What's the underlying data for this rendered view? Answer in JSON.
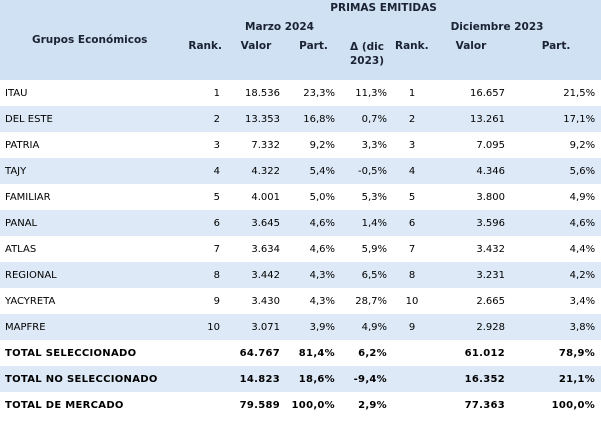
{
  "header": {
    "title": "PRIMAS EMITIDAS",
    "groups_label": "Grupos Económicos",
    "period1": "Marzo 2024",
    "period2": "Diciembre 2023",
    "cols1": {
      "rank": "Rank.",
      "valor": "Valor",
      "part": "Part.",
      "delta_line1": "Δ (dic",
      "delta_line2": "2023)"
    },
    "cols2": {
      "rank": "Rank.",
      "valor": "Valor",
      "part": "Part."
    }
  },
  "rows": [
    {
      "name": "ITAU",
      "rank1": "1",
      "valor1": "18.536",
      "part1": "23,3%",
      "delta": "11,3%",
      "rank2": "1",
      "valor2": "16.657",
      "part2": "21,5%"
    },
    {
      "name": "DEL ESTE",
      "rank1": "2",
      "valor1": "13.353",
      "part1": "16,8%",
      "delta": "0,7%",
      "rank2": "2",
      "valor2": "13.261",
      "part2": "17,1%"
    },
    {
      "name": "PATRIA",
      "rank1": "3",
      "valor1": "7.332",
      "part1": "9,2%",
      "delta": "3,3%",
      "rank2": "3",
      "valor2": "7.095",
      "part2": "9,2%"
    },
    {
      "name": "TAJY",
      "rank1": "4",
      "valor1": "4.322",
      "part1": "5,4%",
      "delta": "-0,5%",
      "rank2": "4",
      "valor2": "4.346",
      "part2": "5,6%"
    },
    {
      "name": "FAMILIAR",
      "rank1": "5",
      "valor1": "4.001",
      "part1": "5,0%",
      "delta": "5,3%",
      "rank2": "5",
      "valor2": "3.800",
      "part2": "4,9%"
    },
    {
      "name": "PANAL",
      "rank1": "6",
      "valor1": "3.645",
      "part1": "4,6%",
      "delta": "1,4%",
      "rank2": "6",
      "valor2": "3.596",
      "part2": "4,6%"
    },
    {
      "name": "ATLAS",
      "rank1": "7",
      "valor1": "3.634",
      "part1": "4,6%",
      "delta": "5,9%",
      "rank2": "7",
      "valor2": "3.432",
      "part2": "4,4%"
    },
    {
      "name": "REGIONAL",
      "rank1": "8",
      "valor1": "3.442",
      "part1": "4,3%",
      "delta": "6,5%",
      "rank2": "8",
      "valor2": "3.231",
      "part2": "4,2%"
    },
    {
      "name": "YACYRETA",
      "rank1": "9",
      "valor1": "3.430",
      "part1": "4,3%",
      "delta": "28,7%",
      "rank2": "10",
      "valor2": "2.665",
      "part2": "3,4%"
    },
    {
      "name": "MAPFRE",
      "rank1": "10",
      "valor1": "3.071",
      "part1": "3,9%",
      "delta": "4,9%",
      "rank2": "9",
      "valor2": "2.928",
      "part2": "3,8%"
    }
  ],
  "totals": [
    {
      "name": "TOTAL SELECCIONADO",
      "valor1": "64.767",
      "part1": "81,4%",
      "delta": "6,2%",
      "valor2": "61.012",
      "part2": "78,9%"
    },
    {
      "name": "TOTAL NO SELECCIONADO",
      "valor1": "14.823",
      "part1": "18,6%",
      "delta": "-9,4%",
      "valor2": "16.352",
      "part2": "21,1%"
    },
    {
      "name": "TOTAL DE MERCADO",
      "valor1": "79.589",
      "part1": "100,0%",
      "delta": "2,9%",
      "valor2": "77.363",
      "part2": "100,0%"
    }
  ]
}
